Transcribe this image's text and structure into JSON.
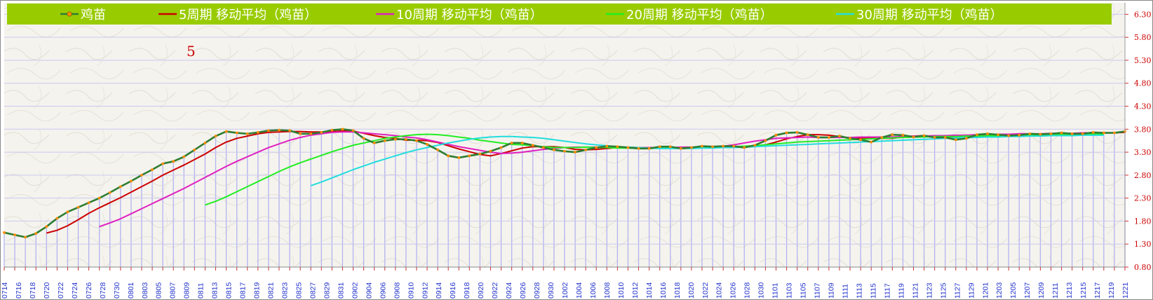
{
  "chart_data": {
    "type": "line",
    "title": "",
    "annotation": "5",
    "ylim": [
      0.8,
      6.55
    ],
    "y_ticks": [
      "6.30",
      "5.80",
      "5.30",
      "4.80",
      "4.30",
      "3.80",
      "3.30",
      "2.80",
      "2.30",
      "1.80",
      "1.30",
      "0.80"
    ],
    "x_tick_labels": [
      "0714",
      "0716",
      "0718",
      "0720",
      "0722",
      "0724",
      "0726",
      "0728",
      "0730",
      "0801",
      "0803",
      "0805",
      "0807",
      "0809",
      "0811",
      "0813",
      "0815",
      "0817",
      "0819",
      "0821",
      "0823",
      "0825",
      "0827",
      "0829",
      "0831",
      "0902",
      "0904",
      "0906",
      "0908",
      "0910",
      "0912",
      "0914",
      "0916",
      "0918",
      "0920",
      "0922",
      "0924",
      "0926",
      "0928",
      "0930",
      "1002",
      "1004",
      "1006",
      "1008",
      "1010",
      "1012",
      "1014",
      "1016",
      "1018",
      "1020",
      "1022",
      "1024",
      "1026",
      "1028",
      "1030",
      "1101",
      "1103",
      "1105",
      "1107",
      "1109",
      "1111",
      "1113",
      "1115",
      "1117",
      "1119",
      "1121",
      "1123",
      "1125",
      "1127",
      "1129",
      "1201",
      "1203",
      "1205",
      "1207",
      "1209",
      "1211",
      "1213",
      "1215",
      "1217",
      "1219",
      "1221"
    ],
    "series": [
      {
        "name": "鸡苗",
        "color": "#2e7d32",
        "marker_color": "#ff8c00",
        "values": [
          1.55,
          1.5,
          1.45,
          1.53,
          1.68,
          1.86,
          2.0,
          2.1,
          2.2,
          2.3,
          2.42,
          2.55,
          2.67,
          2.8,
          2.92,
          3.05,
          3.1,
          3.2,
          3.35,
          3.5,
          3.65,
          3.75,
          3.72,
          3.7,
          3.73,
          3.77,
          3.78,
          3.77,
          3.7,
          3.7,
          3.73,
          3.78,
          3.8,
          3.77,
          3.6,
          3.5,
          3.55,
          3.58,
          3.58,
          3.55,
          3.47,
          3.35,
          3.22,
          3.18,
          3.22,
          3.26,
          3.32,
          3.4,
          3.5,
          3.5,
          3.45,
          3.4,
          3.35,
          3.32,
          3.3,
          3.35,
          3.4,
          3.43,
          3.42,
          3.4,
          3.38,
          3.38,
          3.42,
          3.42,
          3.38,
          3.4,
          3.43,
          3.42,
          3.43,
          3.43,
          3.4,
          3.45,
          3.55,
          3.67,
          3.72,
          3.73,
          3.68,
          3.62,
          3.62,
          3.65,
          3.6,
          3.57,
          3.52,
          3.62,
          3.68,
          3.67,
          3.63,
          3.66,
          3.62,
          3.62,
          3.57,
          3.6,
          3.68,
          3.7,
          3.68,
          3.66,
          3.67,
          3.7,
          3.69,
          3.7,
          3.72,
          3.7,
          3.7,
          3.73,
          3.72,
          3.72,
          3.75
        ]
      },
      {
        "name": "5周期 移动平均（鸡苗）",
        "color": "#cc0000",
        "values": [
          null,
          null,
          null,
          null,
          1.54,
          1.6,
          1.7,
          1.83,
          1.97,
          2.09,
          2.2,
          2.31,
          2.43,
          2.55,
          2.67,
          2.8,
          2.91,
          3.02,
          3.14,
          3.26,
          3.4,
          3.52,
          3.6,
          3.65,
          3.7,
          3.73,
          3.74,
          3.75,
          3.75,
          3.74,
          3.74,
          3.75,
          3.76,
          3.76,
          3.71,
          3.66,
          3.62,
          3.6,
          3.56,
          3.56,
          3.55,
          3.51,
          3.44,
          3.37,
          3.31,
          3.25,
          3.22,
          3.27,
          3.33,
          3.39,
          3.42,
          3.42,
          3.42,
          3.4,
          3.36,
          3.35,
          3.36,
          3.38,
          3.4,
          3.41,
          3.4,
          3.4,
          3.4,
          3.4,
          3.4,
          3.4,
          3.41,
          3.41,
          3.41,
          3.42,
          3.42,
          3.43,
          3.46,
          3.52,
          3.59,
          3.64,
          3.68,
          3.68,
          3.67,
          3.64,
          3.61,
          3.6,
          3.6,
          3.6,
          3.6,
          3.63,
          3.65,
          3.66,
          3.64,
          3.62,
          3.61,
          3.62,
          3.64,
          3.65,
          3.66,
          3.67,
          3.68,
          3.69,
          3.69,
          3.69,
          3.7,
          3.7,
          3.71,
          3.71,
          3.72,
          3.72,
          3.73
        ]
      },
      {
        "name": "10周期 移动平均（鸡苗）",
        "color": "#e020c0",
        "values": [
          null,
          null,
          null,
          null,
          null,
          null,
          null,
          null,
          null,
          1.68,
          1.76,
          1.85,
          1.96,
          2.07,
          2.18,
          2.29,
          2.4,
          2.51,
          2.63,
          2.75,
          2.87,
          2.99,
          3.1,
          3.2,
          3.3,
          3.4,
          3.48,
          3.56,
          3.62,
          3.67,
          3.7,
          3.73,
          3.74,
          3.74,
          3.72,
          3.7,
          3.68,
          3.66,
          3.63,
          3.61,
          3.57,
          3.52,
          3.47,
          3.42,
          3.38,
          3.34,
          3.3,
          3.27,
          3.28,
          3.3,
          3.33,
          3.36,
          3.38,
          3.4,
          3.41,
          3.41,
          3.41,
          3.41,
          3.4,
          3.4,
          3.4,
          3.4,
          3.4,
          3.4,
          3.41,
          3.41,
          3.41,
          3.42,
          3.43,
          3.46,
          3.5,
          3.54,
          3.57,
          3.6,
          3.61,
          3.62,
          3.63,
          3.62,
          3.62,
          3.62,
          3.62,
          3.63,
          3.63,
          3.63,
          3.63,
          3.64,
          3.65,
          3.65,
          3.66,
          3.66,
          3.67,
          3.67,
          3.68,
          3.68,
          3.69,
          3.69,
          3.7,
          3.7,
          3.7,
          3.71,
          3.71,
          3.71,
          3.72,
          3.72,
          3.72
        ]
      },
      {
        "name": "20周期 移动平均（鸡苗）",
        "color": "#22ee22",
        "values": [
          null,
          null,
          null,
          null,
          null,
          null,
          null,
          null,
          null,
          null,
          null,
          null,
          null,
          null,
          null,
          null,
          null,
          null,
          null,
          2.15,
          2.23,
          2.33,
          2.44,
          2.55,
          2.66,
          2.77,
          2.88,
          2.98,
          3.07,
          3.15,
          3.23,
          3.31,
          3.38,
          3.45,
          3.5,
          3.55,
          3.6,
          3.63,
          3.66,
          3.68,
          3.69,
          3.68,
          3.66,
          3.63,
          3.6,
          3.56,
          3.53,
          3.5,
          3.47,
          3.46,
          3.44,
          3.42,
          3.4,
          3.4,
          3.4,
          3.41,
          3.4,
          3.4,
          3.39,
          3.39,
          3.38,
          3.38,
          3.39,
          3.39,
          3.39,
          3.4,
          3.4,
          3.4,
          3.41,
          3.42,
          3.43,
          3.44,
          3.46,
          3.48,
          3.5,
          3.52,
          3.53,
          3.54,
          3.55,
          3.56,
          3.57,
          3.58,
          3.59,
          3.6,
          3.61,
          3.62,
          3.63,
          3.63,
          3.64,
          3.64,
          3.64,
          3.65,
          3.65,
          3.66,
          3.66,
          3.66,
          3.67,
          3.67,
          3.67,
          3.68,
          3.68,
          3.68,
          3.69,
          3.69,
          3.69
        ]
      },
      {
        "name": "30周期 移动平均（鸡苗）",
        "color": "#22dddd",
        "values": [
          null,
          null,
          null,
          null,
          null,
          null,
          null,
          null,
          null,
          null,
          null,
          null,
          null,
          null,
          null,
          null,
          null,
          null,
          null,
          null,
          null,
          null,
          null,
          null,
          null,
          null,
          null,
          null,
          null,
          2.57,
          2.65,
          2.74,
          2.83,
          2.92,
          3.0,
          3.08,
          3.15,
          3.22,
          3.29,
          3.35,
          3.4,
          3.45,
          3.5,
          3.54,
          3.58,
          3.61,
          3.63,
          3.64,
          3.64,
          3.63,
          3.62,
          3.6,
          3.57,
          3.54,
          3.51,
          3.48,
          3.46,
          3.44,
          3.42,
          3.41,
          3.4,
          3.39,
          3.38,
          3.38,
          3.38,
          3.38,
          3.39,
          3.39,
          3.4,
          3.4,
          3.41,
          3.42,
          3.43,
          3.44,
          3.45,
          3.46,
          3.47,
          3.48,
          3.49,
          3.5,
          3.51,
          3.52,
          3.53,
          3.54,
          3.55,
          3.56,
          3.57,
          3.58,
          3.59,
          3.6,
          3.61,
          3.62,
          3.62,
          3.63,
          3.63,
          3.64,
          3.64,
          3.65,
          3.65,
          3.66,
          3.66,
          3.66,
          3.67,
          3.67,
          3.67
        ]
      }
    ]
  }
}
